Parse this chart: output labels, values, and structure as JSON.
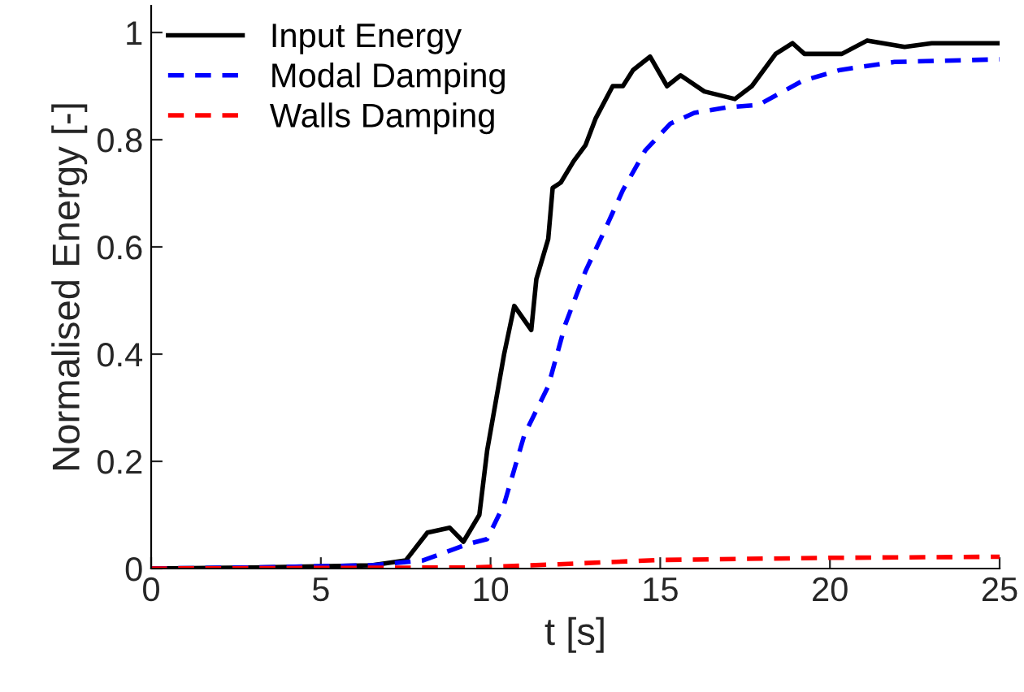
{
  "chart_data": {
    "type": "line",
    "xlabel": "t [s]",
    "ylabel": "Normalised Energy [-]",
    "xlim": [
      0,
      25
    ],
    "ylim": [
      0,
      1.05
    ],
    "xticks": [
      0,
      5,
      10,
      15,
      20,
      25
    ],
    "yticks": [
      0,
      0.2,
      0.4,
      0.6,
      0.8,
      1
    ],
    "grid": false,
    "legend": "top left",
    "series": [
      {
        "name": "Input Energy",
        "color": "#000000",
        "line_style": "solid",
        "x": [
          0,
          3,
          6.5,
          7.5,
          8.14,
          8.8,
          9.2,
          9.67,
          9.9,
          10.4,
          10.7,
          11.2,
          11.35,
          11.7,
          11.83,
          12.07,
          12.45,
          12.8,
          13.1,
          13.6,
          13.9,
          14.2,
          14.7,
          15.2,
          15.6,
          16.3,
          17.2,
          17.7,
          18.4,
          18.9,
          19.25,
          20.35,
          21.1,
          22.2,
          23.0,
          25
        ],
        "values": [
          0,
          0.002,
          0.006,
          0.015,
          0.067,
          0.076,
          0.05,
          0.1,
          0.22,
          0.4,
          0.49,
          0.445,
          0.54,
          0.615,
          0.71,
          0.72,
          0.76,
          0.79,
          0.84,
          0.9,
          0.9,
          0.93,
          0.955,
          0.9,
          0.92,
          0.89,
          0.876,
          0.9,
          0.96,
          0.98,
          0.96,
          0.96,
          0.985,
          0.973,
          0.98,
          0.98
        ]
      },
      {
        "name": "Modal Damping",
        "color": "#0000ff",
        "line_style": "dashed",
        "x": [
          0,
          3,
          6.5,
          8.0,
          9.3,
          9.9,
          10.4,
          11.0,
          11.7,
          12.2,
          12.8,
          13.4,
          13.9,
          14.56,
          15.3,
          16.0,
          16.95,
          17.9,
          19.2,
          20.3,
          21.9,
          25
        ],
        "values": [
          0,
          0.002,
          0.006,
          0.015,
          0.045,
          0.055,
          0.12,
          0.25,
          0.34,
          0.455,
          0.555,
          0.636,
          0.706,
          0.78,
          0.83,
          0.85,
          0.86,
          0.865,
          0.91,
          0.93,
          0.945,
          0.95
        ]
      },
      {
        "name": "Walls Damping",
        "color": "#ff0000",
        "line_style": "dashed",
        "x": [
          0,
          9.5,
          12,
          15,
          20,
          25
        ],
        "values": [
          0,
          0.002,
          0.008,
          0.016,
          0.02,
          0.022
        ]
      }
    ]
  }
}
